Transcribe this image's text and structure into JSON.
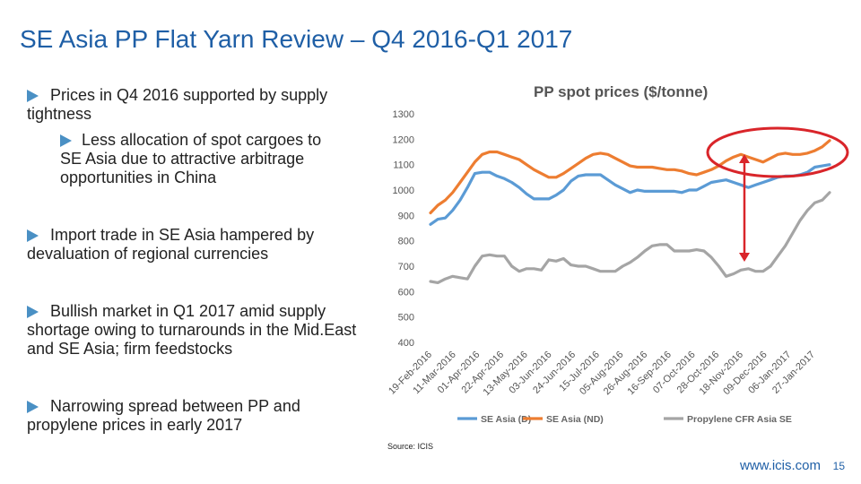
{
  "title": "SE Asia PP Flat Yarn Review – Q4 2016-Q1 2017",
  "bullets": [
    {
      "text": "Prices in Q4 2016 supported by supply tightness"
    },
    {
      "text": "Less allocation of spot cargoes to SE Asia due to attractive arbitrage opportunities in China",
      "sub": true
    },
    {
      "text": "Import trade in SE Asia hampered by devaluation of regional currencies"
    },
    {
      "text": "Bullish market in Q1 2017 amid supply shortage owing to turnarounds in the Mid.East and SE Asia; firm feedstocks"
    },
    {
      "text": "Narrowing spread between PP and propylene prices in early 2017"
    }
  ],
  "source": "Source: ICIS",
  "footer_url": "www.icis.com",
  "page_number": "15",
  "colors": {
    "title": "#1f5fa6",
    "bullet_marker": "#4a90c4",
    "highlight": "#d9252a"
  },
  "chart_data": {
    "type": "line",
    "title": "PP spot prices ($/tonne)",
    "xlabel": "",
    "ylabel": "",
    "ylim": [
      400,
      1300
    ],
    "yticks": [
      "1300",
      "1200",
      "1100",
      "1000",
      "900",
      "800",
      "700",
      "600",
      "500",
      "400"
    ],
    "x_tick_labels": [
      "19-Feb-2016",
      "11-Mar-2016",
      "01-Apr-2016",
      "22-Apr-2016",
      "13-May-2016",
      "03-Jun-2016",
      "24-Jun-2016",
      "15-Jul-2016",
      "05-Aug-2016",
      "26-Aug-2016",
      "16-Sep-2016",
      "07-Oct-2016",
      "28-Oct-2016",
      "18-Nov-2016",
      "09-Dec-2016",
      "06-Jan-2017",
      "27-Jan-2017"
    ],
    "grid": false,
    "legend_position": "bottom",
    "series": [
      {
        "name": "SE Asia (D)",
        "color": "#5b9bd5",
        "values": [
          865,
          885,
          890,
          920,
          960,
          1010,
          1065,
          1070,
          1070,
          1055,
          1045,
          1030,
          1010,
          985,
          965,
          965,
          965,
          980,
          1000,
          1035,
          1055,
          1060,
          1060,
          1060,
          1040,
          1020,
          1005,
          990,
          1000,
          995,
          995,
          995,
          995,
          995,
          990,
          1000,
          1000,
          1015,
          1030,
          1035,
          1040,
          1030,
          1020,
          1010,
          1020,
          1030,
          1040,
          1050,
          1055,
          1055,
          1060,
          1070,
          1090,
          1095,
          1100
        ]
      },
      {
        "name": "SE Asia (ND)",
        "color": "#ed7d31",
        "values": [
          910,
          940,
          960,
          990,
          1030,
          1070,
          1110,
          1140,
          1150,
          1150,
          1140,
          1130,
          1120,
          1100,
          1080,
          1065,
          1050,
          1050,
          1065,
          1085,
          1105,
          1125,
          1140,
          1145,
          1140,
          1125,
          1110,
          1095,
          1090,
          1090,
          1090,
          1085,
          1080,
          1080,
          1075,
          1065,
          1060,
          1070,
          1080,
          1095,
          1115,
          1130,
          1140,
          1130,
          1120,
          1110,
          1125,
          1140,
          1145,
          1140,
          1140,
          1145,
          1155,
          1170,
          1195
        ]
      },
      {
        "name": "Propylene CFR Asia SE",
        "color": "#a5a5a5",
        "values": [
          640,
          635,
          650,
          660,
          655,
          650,
          700,
          740,
          745,
          740,
          740,
          700,
          680,
          690,
          690,
          685,
          725,
          720,
          730,
          705,
          700,
          700,
          690,
          680,
          680,
          680,
          700,
          715,
          735,
          760,
          780,
          785,
          785,
          760,
          760,
          760,
          765,
          760,
          735,
          700,
          660,
          670,
          685,
          690,
          680,
          680,
          700,
          740,
          780,
          830,
          880,
          920,
          950,
          960,
          990
        ]
      }
    ]
  }
}
